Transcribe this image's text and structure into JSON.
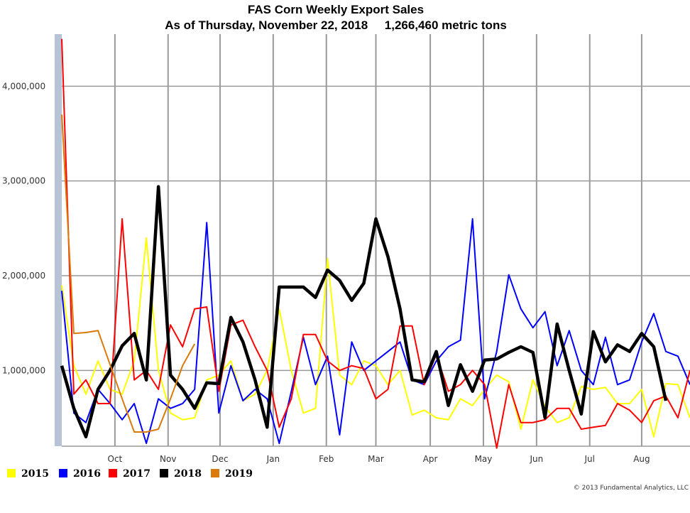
{
  "chart_data": {
    "type": "line",
    "title": "FAS Corn Weekly Export Sales",
    "subtitle": "As of Thursday, November 22, 2018     1,266,460 metric tons",
    "xlabel": "",
    "ylabel": "",
    "ylim": [
      200000,
      4550000
    ],
    "y_ticks": [
      1000000,
      2000000,
      3000000,
      4000000
    ],
    "y_tick_labels": [
      "1,000,000",
      "2,000,000",
      "3,000,000",
      "4,000,000"
    ],
    "x_weeks": 52,
    "x_tick_labels": [
      "Oct",
      "Nov",
      "Dec",
      "Jan",
      "Feb",
      "Mar",
      "Apr",
      "May",
      "Jun",
      "Jul",
      "Aug"
    ],
    "x_tick_weeks": [
      4.4,
      8.8,
      13.1,
      17.5,
      21.9,
      26.0,
      30.5,
      34.9,
      39.3,
      43.7,
      48.0
    ],
    "grid": true,
    "legend_position": "bottom-left",
    "series": [
      {
        "name": "2015",
        "color": "#ffff00",
        "values": [
          1900000,
          1050000,
          750000,
          1100000,
          800000,
          750000,
          1100000,
          2400000,
          1000000,
          550000,
          480000,
          500000,
          900000,
          950000,
          1100000,
          680000,
          750000,
          1000000,
          1650000,
          1000000,
          550000,
          600000,
          2180000,
          950000,
          850000,
          1100000,
          1050000,
          850000,
          1000000,
          530000,
          580000,
          500000,
          480000,
          700000,
          630000,
          800000,
          950000,
          880000,
          380000,
          900000,
          620000,
          450000,
          500000,
          830000,
          800000,
          820000,
          650000,
          650000,
          800000,
          300000,
          860000,
          850000,
          500000
        ]
      },
      {
        "name": "2016",
        "color": "#0000ff",
        "values": [
          1840000,
          550000,
          450000,
          800000,
          650000,
          480000,
          650000,
          230000,
          700000,
          600000,
          650000,
          800000,
          2560000,
          550000,
          1050000,
          680000,
          800000,
          700000,
          230000,
          780000,
          1350000,
          850000,
          1150000,
          320000,
          1300000,
          1000000,
          1100000,
          1200000,
          1300000,
          900000,
          850000,
          1100000,
          1250000,
          1320000,
          2600000,
          700000,
          1200000,
          2010000,
          1650000,
          1450000,
          1620000,
          1050000,
          1420000,
          1000000,
          850000,
          1350000,
          850000,
          900000,
          1300000,
          1600000,
          1200000,
          1150000,
          850000
        ]
      },
      {
        "name": "2017",
        "color": "#ff0000",
        "values": [
          4500000,
          750000,
          900000,
          650000,
          650000,
          2600000,
          900000,
          1000000,
          800000,
          1480000,
          1250000,
          1650000,
          1670000,
          780000,
          1480000,
          1530000,
          1250000,
          1000000,
          400000,
          700000,
          1380000,
          1380000,
          1100000,
          1000000,
          1050000,
          1020000,
          700000,
          800000,
          1470000,
          1470000,
          850000,
          1170000,
          780000,
          850000,
          1000000,
          850000,
          180000,
          850000,
          450000,
          450000,
          480000,
          600000,
          600000,
          380000,
          400000,
          420000,
          650000,
          580000,
          450000,
          680000,
          730000,
          500000,
          1000000
        ]
      },
      {
        "name": "2018",
        "color": "#000000",
        "values": [
          1050000,
          600000,
          300000,
          800000,
          1000000,
          1260000,
          1390000,
          900000,
          2940000,
          950000,
          800000,
          600000,
          870000,
          860000,
          1560000,
          1300000,
          900000,
          400000,
          1880000,
          1880000,
          1880000,
          1770000,
          2060000,
          1950000,
          1740000,
          1920000,
          2600000,
          2200000,
          1650000,
          900000,
          880000,
          1200000,
          630000,
          1060000,
          780000,
          1110000,
          1120000,
          1190000,
          1250000,
          1190000,
          500000,
          1490000,
          1000000,
          540000,
          1410000,
          1090000,
          1270000,
          1200000,
          1390000,
          1250000,
          680000
        ]
      },
      {
        "name": "2019",
        "color": "#d97a0a",
        "values": [
          3700000,
          1390000,
          1400000,
          1420000,
          1060000,
          700000,
          350000,
          350000,
          380000,
          700000,
          1050000,
          1280000
        ]
      }
    ]
  },
  "copyright": "© 2013 Fundamental Analytics, LLC"
}
